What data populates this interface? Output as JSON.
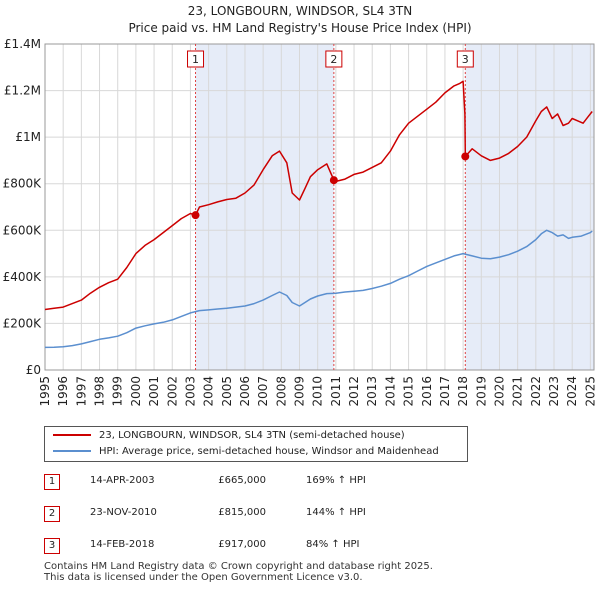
{
  "title_line1": "23, LONGBOURN, WINDSOR, SL4 3TN",
  "title_line2": "Price paid vs. HM Land Registry's House Price Index (HPI)",
  "legend": {
    "property": "23, LONGBOURN, WINDSOR, SL4 3TN (semi-detached house)",
    "hpi": "HPI: Average price, semi-detached house, Windsor and Maidenhead"
  },
  "sales": [
    {
      "num": "1",
      "date": "14-APR-2003",
      "price": "£665,000",
      "hpi": "169% ↑ HPI"
    },
    {
      "num": "2",
      "date": "23-NOV-2010",
      "price": "£815,000",
      "hpi": "144% ↑ HPI"
    },
    {
      "num": "3",
      "date": "14-FEB-2018",
      "price": "£917,000",
      "hpi": "84% ↑ HPI"
    }
  ],
  "footer": {
    "line1": "Contains HM Land Registry data © Crown copyright and database right 2025.",
    "line2": "This data is licensed under the Open Government Licence v3.0."
  },
  "colors": {
    "property": "#cc0000",
    "hpi": "#5b8fcf",
    "shade": "#e6ecf8",
    "grid": "#d8d8d8"
  },
  "chart_data": {
    "type": "line",
    "title": "23, LONGBOURN, WINDSOR, SL4 3TN",
    "subtitle": "Price paid vs. HM Land Registry's House Price Index (HPI)",
    "xlabel": "",
    "ylabel": "",
    "xlim": [
      1995,
      2025.2
    ],
    "ylim": [
      0,
      1400000
    ],
    "grid": true,
    "x_ticks": [
      "1995",
      "1996",
      "1997",
      "1998",
      "1999",
      "2000",
      "2001",
      "2002",
      "2003",
      "2004",
      "2005",
      "2006",
      "2007",
      "2008",
      "2009",
      "2010",
      "2011",
      "2012",
      "2013",
      "2014",
      "2015",
      "2016",
      "2017",
      "2018",
      "2019",
      "2020",
      "2021",
      "2022",
      "2023",
      "2024",
      "2025"
    ],
    "y_ticks": [
      {
        "value": 0,
        "label": "£0"
      },
      {
        "value": 200000,
        "label": "£200K"
      },
      {
        "value": 400000,
        "label": "£400K"
      },
      {
        "value": 600000,
        "label": "£600K"
      },
      {
        "value": 800000,
        "label": "£800K"
      },
      {
        "value": 1000000,
        "label": "£1M"
      },
      {
        "value": 1200000,
        "label": "£1.2M"
      },
      {
        "value": 1400000,
        "label": "£1.4M"
      }
    ],
    "series": [
      {
        "name": "23, LONGBOURN, WINDSOR, SL4 3TN (semi-detached house)",
        "x": [
          1995.0,
          1995.5,
          1996.0,
          1996.5,
          1997.0,
          1997.5,
          1998.0,
          1998.5,
          1999.0,
          1999.5,
          2000.0,
          2000.5,
          2001.0,
          2001.5,
          2002.0,
          2002.5,
          2003.0,
          2003.28,
          2003.5,
          2004.0,
          2004.5,
          2005.0,
          2005.5,
          2006.0,
          2006.5,
          2007.0,
          2007.5,
          2007.9,
          2008.3,
          2008.6,
          2009.0,
          2009.3,
          2009.6,
          2010.0,
          2010.5,
          2010.89,
          2011.0,
          2011.5,
          2012.0,
          2012.5,
          2013.0,
          2013.5,
          2014.0,
          2014.5,
          2015.0,
          2015.5,
          2016.0,
          2016.5,
          2017.0,
          2017.5,
          2017.8,
          2018.0,
          2018.1,
          2018.12,
          2018.5,
          2019.0,
          2019.5,
          2020.0,
          2020.5,
          2021.0,
          2021.5,
          2022.0,
          2022.3,
          2022.6,
          2022.9,
          2023.2,
          2023.5,
          2023.8,
          2024.0,
          2024.3,
          2024.6,
          2024.9,
          2025.1
        ],
        "y": [
          260000,
          265000,
          270000,
          285000,
          300000,
          330000,
          355000,
          375000,
          390000,
          440000,
          500000,
          535000,
          560000,
          590000,
          620000,
          650000,
          672000,
          665000,
          700000,
          710000,
          722000,
          732000,
          738000,
          760000,
          795000,
          860000,
          920000,
          940000,
          890000,
          760000,
          730000,
          780000,
          830000,
          860000,
          885000,
          815000,
          810000,
          820000,
          840000,
          850000,
          870000,
          890000,
          940000,
          1010000,
          1060000,
          1090000,
          1120000,
          1150000,
          1190000,
          1220000,
          1230000,
          1240000,
          1100000,
          917000,
          950000,
          920000,
          900000,
          910000,
          930000,
          960000,
          1000000,
          1070000,
          1110000,
          1130000,
          1080000,
          1100000,
          1050000,
          1060000,
          1080000,
          1070000,
          1060000,
          1090000,
          1110000
        ]
      },
      {
        "name": "HPI: Average price, semi-detached house, Windsor and Maidenhead",
        "x": [
          1995.0,
          1995.5,
          1996.0,
          1996.5,
          1997.0,
          1997.5,
          1998.0,
          1998.5,
          1999.0,
          1999.5,
          2000.0,
          2000.5,
          2001.0,
          2001.5,
          2002.0,
          2002.5,
          2003.0,
          2003.5,
          2004.0,
          2004.5,
          2005.0,
          2005.5,
          2006.0,
          2006.5,
          2007.0,
          2007.5,
          2007.9,
          2008.3,
          2008.6,
          2009.0,
          2009.3,
          2009.6,
          2010.0,
          2010.5,
          2011.0,
          2011.5,
          2012.0,
          2012.5,
          2013.0,
          2013.5,
          2014.0,
          2014.5,
          2015.0,
          2015.5,
          2016.0,
          2016.5,
          2017.0,
          2017.5,
          2018.0,
          2018.5,
          2019.0,
          2019.5,
          2020.0,
          2020.5,
          2021.0,
          2021.5,
          2022.0,
          2022.3,
          2022.6,
          2022.9,
          2023.2,
          2023.5,
          2023.8,
          2024.0,
          2024.5,
          2025.0,
          2025.1
        ],
        "y": [
          97000,
          98000,
          100000,
          105000,
          112000,
          122000,
          132000,
          138000,
          145000,
          160000,
          180000,
          190000,
          198000,
          205000,
          215000,
          230000,
          245000,
          255000,
          258000,
          262000,
          265000,
          270000,
          275000,
          285000,
          300000,
          320000,
          335000,
          320000,
          290000,
          275000,
          290000,
          305000,
          318000,
          328000,
          330000,
          335000,
          338000,
          342000,
          350000,
          360000,
          372000,
          390000,
          405000,
          425000,
          445000,
          460000,
          475000,
          490000,
          500000,
          490000,
          480000,
          478000,
          485000,
          495000,
          510000,
          530000,
          560000,
          585000,
          600000,
          590000,
          575000,
          580000,
          565000,
          570000,
          575000,
          590000,
          597000
        ]
      }
    ],
    "sales": [
      {
        "label": "1",
        "x": 2003.28,
        "y": 665000
      },
      {
        "label": "2",
        "x": 2010.89,
        "y": 815000
      },
      {
        "label": "3",
        "x": 2018.12,
        "y": 917000
      }
    ],
    "shaded_periods": [
      [
        2003.28,
        2010.89
      ],
      [
        2018.12,
        2025.2
      ]
    ]
  }
}
